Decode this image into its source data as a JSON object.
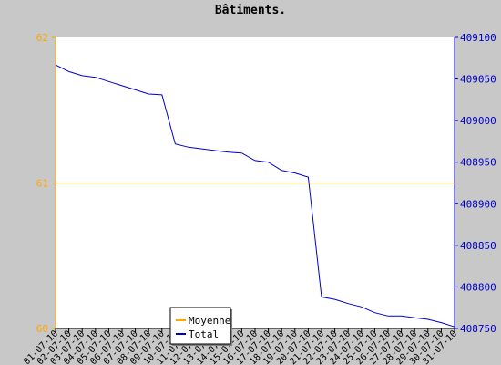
{
  "chart_data": {
    "type": "line",
    "title": "Bâtiments.",
    "xlabel": "",
    "ylabel_left": "",
    "ylabel_right": "",
    "categories": [
      "01-07-10",
      "02-07-10",
      "03-07-10",
      "04-07-10",
      "05-07-10",
      "06-07-10",
      "07-07-10",
      "08-07-10",
      "09-07-10",
      "10-07-10",
      "11-07-10",
      "12-07-10",
      "13-07-10",
      "14-07-10",
      "15-07-10",
      "16-07-10",
      "17-07-10",
      "18-07-10",
      "19-07-10",
      "20-07-10",
      "21-07-10",
      "22-07-10",
      "23-07-10",
      "24-07-10",
      "25-07-10",
      "26-07-10",
      "27-07-10",
      "28-07-10",
      "29-07-10",
      "30-07-10",
      "31-07-10"
    ],
    "y_left": {
      "ylim": [
        60,
        62
      ],
      "ticks": [
        60,
        61,
        62
      ],
      "tick_labels": [
        "60",
        "61",
        "62"
      ],
      "color": "#ffa500"
    },
    "y_right": {
      "ylim": [
        408750,
        409100
      ],
      "ticks": [
        408750,
        408800,
        408850,
        408900,
        408950,
        409000,
        409050,
        409100
      ],
      "tick_labels": [
        "408750",
        "408800",
        "408850",
        "408900",
        "408950",
        "409000",
        "409050",
        "409100"
      ],
      "color": "#0000cc"
    },
    "series": [
      {
        "name": "Moyenne",
        "axis": "left",
        "color": "#ffa500",
        "values": [
          61,
          61,
          61,
          61,
          61,
          61,
          61,
          61,
          61,
          61,
          61,
          61,
          61,
          61,
          61,
          61,
          61,
          61,
          61,
          61,
          61,
          61,
          61,
          61,
          61,
          61,
          61,
          61,
          61,
          61,
          61
        ]
      },
      {
        "name": "Total",
        "axis": "right",
        "color": "#0000cc",
        "values": [
          409067,
          409059,
          409054,
          409052,
          409047,
          409042,
          409037,
          409032,
          409031,
          408972,
          408968,
          408966,
          408964,
          408962,
          408961,
          408952,
          408950,
          408940,
          408937,
          408932,
          408788,
          408785,
          408780,
          408776,
          408769,
          408765,
          408765,
          408763,
          408761,
          408757,
          408752
        ]
      }
    ],
    "grid": false,
    "legend": {
      "position": "bottom-center",
      "entries": [
        "Moyenne",
        "Total"
      ]
    }
  }
}
